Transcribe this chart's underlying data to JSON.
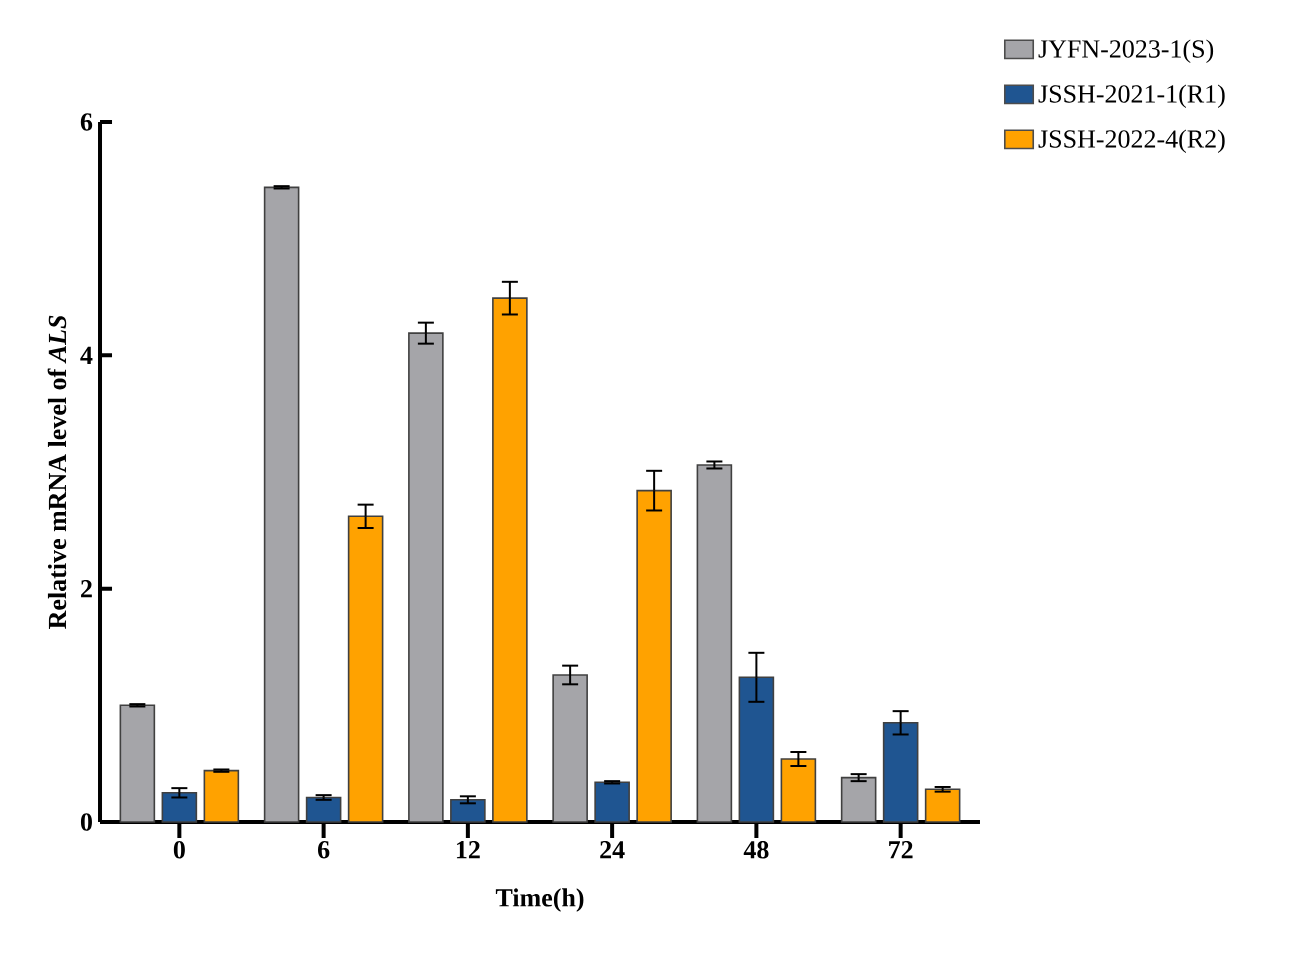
{
  "chart_data": {
    "type": "bar",
    "xlabel": "Time(h)",
    "ylabel": "Relative mRNA level of *ALS*",
    "categories": [
      "0",
      "6",
      "12",
      "24",
      "48",
      "72"
    ],
    "ylim": [
      0,
      6
    ],
    "yticks": [
      0,
      2,
      4,
      6
    ],
    "legend": "top right",
    "series": [
      {
        "name": "JYFN-2023-1(S)",
        "color": "#a5a5a9",
        "values": [
          1.0,
          5.44,
          4.19,
          1.26,
          3.06,
          0.38
        ],
        "errors": [
          0.01,
          0.01,
          0.09,
          0.08,
          0.03,
          0.03
        ]
      },
      {
        "name": "JSSH-2021-1(R1)",
        "color": "#1f5591",
        "values": [
          0.25,
          0.21,
          0.19,
          0.34,
          1.24,
          0.85
        ],
        "errors": [
          0.04,
          0.02,
          0.03,
          0.01,
          0.21,
          0.1
        ]
      },
      {
        "name": "JSSH-2022-4(R2)",
        "color": "#ffa200",
        "values": [
          0.44,
          2.62,
          4.49,
          2.84,
          0.54,
          0.28
        ],
        "errors": [
          0.01,
          0.1,
          0.14,
          0.17,
          0.06,
          0.02
        ]
      }
    ]
  }
}
